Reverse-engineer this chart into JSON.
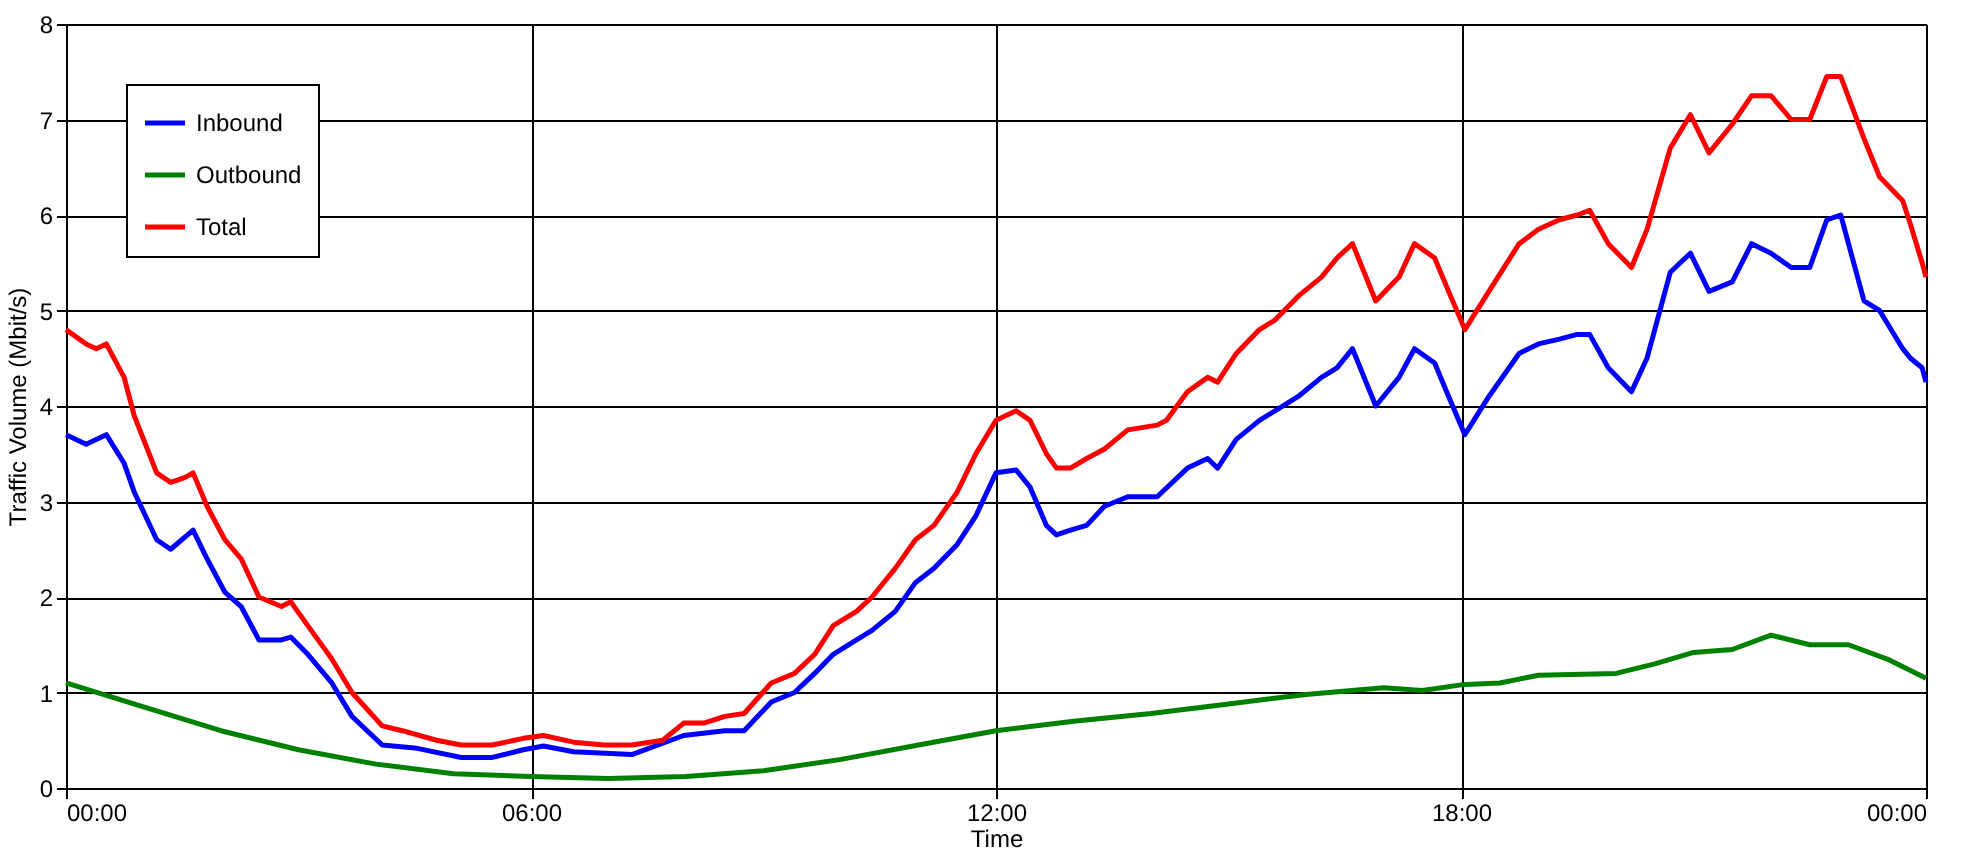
{
  "chart_data": {
    "type": "line",
    "xlabel": "Time",
    "ylabel": "Traffic Volume (Mbit/s)",
    "xlim": [
      0,
      24
    ],
    "xticks": [
      {
        "value": 0,
        "label": "00:00"
      },
      {
        "value": 6,
        "label": "06:00"
      },
      {
        "value": 12,
        "label": "12:00"
      },
      {
        "value": 18,
        "label": "18:00"
      },
      {
        "value": 24,
        "label": "00:00"
      }
    ],
    "ylim": [
      0,
      8
    ],
    "yticks": [
      0,
      1,
      2,
      3,
      4,
      5,
      6,
      7,
      8
    ],
    "grid": true,
    "legend": "top left",
    "marker": "none",
    "line_style": "solid",
    "series": [
      {
        "name": "Inbound",
        "color": "#0000ff",
        "x": [
          0,
          0.26,
          0.52,
          0.75,
          0.88,
          1.17,
          1.35,
          1.64,
          1.82,
          2.05,
          2.26,
          2.49,
          2.78,
          2.9,
          3.12,
          3.43,
          3.69,
          4.08,
          4.5,
          5.1,
          5.5,
          5.9,
          6.16,
          6.55,
          7.3,
          7.97,
          8.5,
          8.75,
          9.1,
          9.4,
          9.66,
          9.9,
          10.2,
          10.4,
          10.7,
          10.96,
          11.2,
          11.5,
          11.74,
          12.0,
          12.26,
          12.44,
          12.65,
          12.78,
          12.96,
          13.17,
          13.4,
          13.7,
          14.08,
          14.47,
          14.73,
          14.86,
          15.1,
          15.4,
          15.6,
          15.9,
          16.2,
          16.4,
          16.6,
          16.9,
          17.2,
          17.4,
          17.66,
          17.84,
          18.05,
          18.36,
          18.75,
          19.0,
          19.27,
          19.5,
          19.66,
          19.9,
          20.2,
          20.4,
          20.7,
          20.96,
          21.2,
          21.5,
          21.75,
          22.0,
          22.26,
          22.5,
          22.72,
          22.9,
          23.2,
          23.4,
          23.7,
          23.8,
          23.95,
          24
        ],
        "values": [
          3.7,
          3.6,
          3.7,
          3.4,
          3.1,
          2.6,
          2.5,
          2.7,
          2.4,
          2.05,
          1.9,
          1.55,
          1.55,
          1.58,
          1.4,
          1.1,
          0.75,
          0.45,
          0.42,
          0.32,
          0.32,
          0.4,
          0.44,
          0.38,
          0.35,
          0.55,
          0.6,
          0.6,
          0.9,
          1.0,
          1.2,
          1.4,
          1.55,
          1.65,
          1.85,
          2.15,
          2.3,
          2.55,
          2.85,
          3.3,
          3.33,
          3.15,
          2.75,
          2.65,
          2.7,
          2.75,
          2.95,
          3.05,
          3.05,
          3.35,
          3.45,
          3.35,
          3.65,
          3.85,
          3.95,
          4.1,
          4.3,
          4.4,
          4.6,
          4.0,
          4.3,
          4.6,
          4.45,
          4.1,
          3.7,
          4.1,
          4.55,
          4.65,
          4.7,
          4.75,
          4.75,
          4.4,
          4.15,
          4.5,
          5.4,
          5.6,
          5.2,
          5.3,
          5.7,
          5.6,
          5.45,
          5.45,
          5.95,
          6.0,
          5.1,
          5.0,
          4.6,
          4.5,
          4.4,
          4.25
        ]
      },
      {
        "name": "Outbound",
        "color": "#008000",
        "x": [
          0,
          1,
          2,
          3,
          4,
          5,
          6,
          7,
          8,
          9,
          10,
          11,
          12,
          13,
          14,
          15,
          16,
          17,
          17.5,
          18,
          18.5,
          19,
          20,
          20.5,
          21,
          21.5,
          22,
          22.5,
          23,
          23.5,
          24
        ],
        "values": [
          1.1,
          0.85,
          0.6,
          0.4,
          0.25,
          0.15,
          0.12,
          0.1,
          0.12,
          0.18,
          0.3,
          0.45,
          0.6,
          0.7,
          0.78,
          0.88,
          0.98,
          1.05,
          1.02,
          1.08,
          1.1,
          1.18,
          1.2,
          1.3,
          1.42,
          1.45,
          1.6,
          1.5,
          1.5,
          1.35,
          1.15
        ]
      },
      {
        "name": "Total",
        "color": "#ff0000",
        "x": [
          0,
          0.26,
          0.39,
          0.52,
          0.75,
          0.88,
          1.17,
          1.35,
          1.53,
          1.64,
          1.82,
          2.05,
          2.26,
          2.49,
          2.78,
          2.9,
          3.12,
          3.43,
          3.69,
          4.08,
          4.34,
          4.78,
          5.1,
          5.5,
          5.9,
          6.16,
          6.55,
          6.94,
          7.3,
          7.7,
          7.97,
          8.23,
          8.5,
          8.75,
          9.1,
          9.4,
          9.66,
          9.9,
          10.2,
          10.4,
          10.7,
          10.96,
          11.2,
          11.5,
          11.74,
          12.0,
          12.26,
          12.44,
          12.65,
          12.78,
          12.96,
          13.17,
          13.4,
          13.7,
          14.08,
          14.2,
          14.47,
          14.73,
          14.86,
          15.1,
          15.4,
          15.6,
          15.9,
          16.2,
          16.4,
          16.6,
          16.9,
          17.2,
          17.4,
          17.66,
          17.84,
          18.05,
          18.36,
          18.75,
          19.0,
          19.27,
          19.5,
          19.66,
          19.9,
          20.2,
          20.4,
          20.7,
          20.96,
          21.2,
          21.5,
          21.75,
          22.0,
          22.26,
          22.5,
          22.72,
          22.9,
          23.2,
          23.4,
          23.7,
          23.8,
          23.95,
          24
        ],
        "values": [
          4.8,
          4.65,
          4.6,
          4.65,
          4.3,
          3.9,
          3.3,
          3.2,
          3.25,
          3.3,
          2.95,
          2.6,
          2.4,
          2.0,
          1.9,
          1.95,
          1.7,
          1.35,
          1.0,
          0.65,
          0.6,
          0.5,
          0.45,
          0.45,
          0.52,
          0.55,
          0.48,
          0.45,
          0.45,
          0.5,
          0.68,
          0.68,
          0.75,
          0.78,
          1.1,
          1.2,
          1.4,
          1.7,
          1.85,
          2.0,
          2.3,
          2.6,
          2.75,
          3.1,
          3.5,
          3.85,
          3.95,
          3.85,
          3.5,
          3.35,
          3.35,
          3.45,
          3.55,
          3.75,
          3.8,
          3.85,
          4.15,
          4.3,
          4.25,
          4.55,
          4.8,
          4.9,
          5.15,
          5.35,
          5.55,
          5.7,
          5.1,
          5.35,
          5.7,
          5.55,
          5.2,
          4.8,
          5.2,
          5.7,
          5.85,
          5.95,
          6.0,
          6.05,
          5.7,
          5.45,
          5.85,
          6.7,
          7.05,
          6.65,
          6.95,
          7.25,
          7.25,
          7.0,
          7.0,
          7.45,
          7.45,
          6.8,
          6.4,
          6.15,
          5.9,
          5.5,
          5.35
        ]
      }
    ]
  }
}
